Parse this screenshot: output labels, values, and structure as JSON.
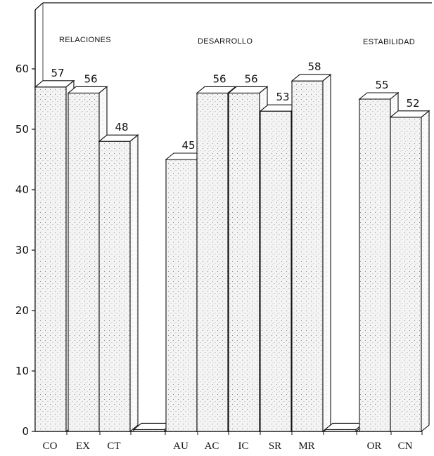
{
  "chart_data": {
    "type": "bar",
    "categories": [
      "CO",
      "EX",
      "CT",
      "",
      "AU",
      "AC",
      "IC",
      "SR",
      "MR",
      "",
      "OR",
      "CN"
    ],
    "values": [
      57,
      56,
      48,
      0,
      45,
      56,
      56,
      53,
      58,
      0,
      55,
      52
    ],
    "value_labels": [
      "57",
      "56",
      "48",
      "",
      "45",
      "56",
      "56",
      "53",
      "58",
      "",
      "55",
      "52"
    ],
    "groups": [
      {
        "label": "RELACIONES",
        "categories": [
          "CO",
          "EX",
          "CT"
        ]
      },
      {
        "label": "DESARROLLO",
        "categories": [
          "AU",
          "AC",
          "IC",
          "SR",
          "MR"
        ]
      },
      {
        "label": "ESTABILIDAD",
        "categories": [
          "OR",
          "CN"
        ]
      }
    ],
    "yticks": [
      "0",
      "10",
      "20",
      "30",
      "40",
      "50",
      "60"
    ],
    "ylim": [
      0,
      60
    ],
    "grid": false,
    "legend": "none",
    "style": "3d-bars-stippled"
  }
}
